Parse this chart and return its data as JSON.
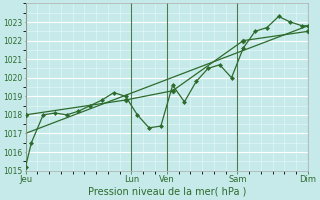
{
  "title": "",
  "xlabel": "Pression niveau de la mer( hPa )",
  "ylabel": "",
  "bg_color": "#c6eaea",
  "grid_color": "#ffffff",
  "grid_minor_color": "#daf0f0",
  "line_color": "#2d6b2d",
  "ylim": [
    1015,
    1024
  ],
  "yticks": [
    1015,
    1016,
    1017,
    1018,
    1019,
    1020,
    1021,
    1022,
    1023
  ],
  "xlim": [
    0,
    96
  ],
  "day_labels": [
    "Jeu",
    "Lun",
    "Ven",
    "Sam",
    "Dim"
  ],
  "day_positions": [
    0,
    36,
    48,
    72,
    96
  ],
  "series1_x": [
    0,
    2,
    6,
    10,
    14,
    18,
    22,
    26,
    30,
    34,
    38,
    42,
    46,
    50,
    54,
    58,
    62,
    66,
    70,
    74,
    78,
    82,
    86,
    90,
    94,
    96
  ],
  "series1_y": [
    1015.2,
    1016.5,
    1018.0,
    1018.1,
    1018.0,
    1018.2,
    1018.5,
    1018.8,
    1019.2,
    1019.0,
    1018.0,
    1017.3,
    1017.4,
    1019.6,
    1018.7,
    1019.8,
    1020.5,
    1020.7,
    1020.0,
    1021.6,
    1022.5,
    1022.7,
    1023.3,
    1023.0,
    1022.8,
    1022.8
  ],
  "series2_x": [
    0,
    34,
    50,
    74,
    96
  ],
  "series2_y": [
    1018.0,
    1018.8,
    1019.3,
    1022.0,
    1022.5
  ],
  "series3_x": [
    0,
    96
  ],
  "series3_y": [
    1017.0,
    1022.8
  ],
  "figsize": [
    3.2,
    2.0
  ],
  "dpi": 100
}
